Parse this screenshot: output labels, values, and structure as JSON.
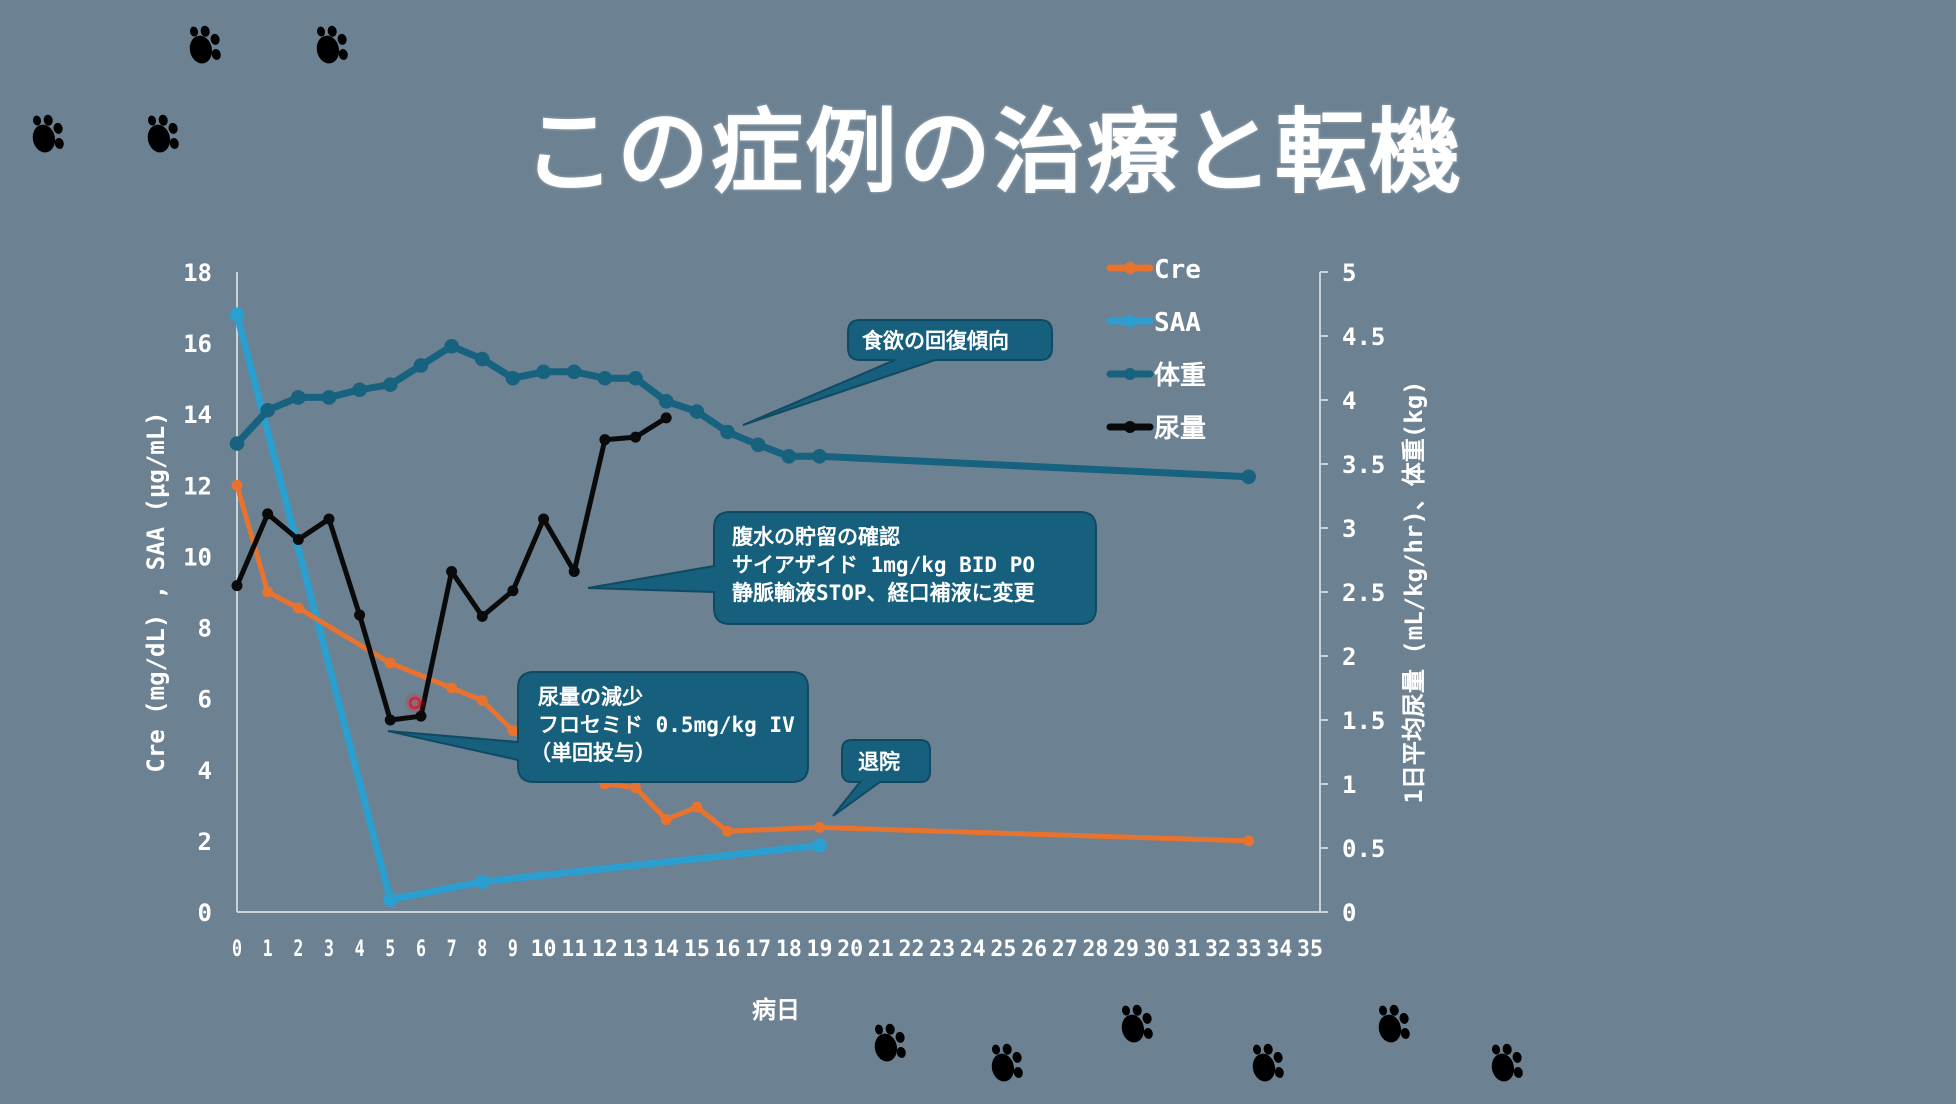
{
  "slide": {
    "title": "この症例の治療と転機",
    "background": "#6c8191"
  },
  "chart_data": {
    "type": "line",
    "title": "この症例の治療と転機",
    "xlabel": "病日",
    "ylabel_left": "Cre (mg/dL) , SAA (μg/mL)",
    "ylabel_right": "1日平均尿量 (mL/kg/hr)、体重(kg)",
    "xlim": [
      0,
      35
    ],
    "ylim_left": [
      0,
      18
    ],
    "ylim_right": [
      0,
      5
    ],
    "x_ticks": [
      "0",
      "1",
      "2",
      "3",
      "4",
      "5",
      "6",
      "7",
      "8",
      "9",
      "10",
      "11",
      "12",
      "13",
      "14",
      "15",
      "16",
      "17",
      "18",
      "19",
      "20",
      "21",
      "22",
      "23",
      "24",
      "25",
      "26",
      "27",
      "28",
      "29",
      "30",
      "31",
      "32",
      "33",
      "34",
      "35"
    ],
    "y_ticks_left": [
      "0",
      "2",
      "4",
      "6",
      "8",
      "10",
      "12",
      "14",
      "16",
      "18"
    ],
    "y_ticks_right": [
      "0",
      "0.5",
      "1",
      "1.5",
      "2",
      "2.5",
      "3",
      "3.5",
      "4",
      "4.5",
      "5"
    ],
    "grid": false,
    "legend_position": "top-right",
    "series": [
      {
        "name": "Cre",
        "axis": "left",
        "color": "#e8732e",
        "width": 5,
        "points": [
          [
            0,
            12.0
          ],
          [
            1,
            9.0
          ],
          [
            2,
            8.55
          ],
          [
            5,
            7.0
          ],
          [
            7,
            6.3
          ],
          [
            8,
            5.95
          ],
          [
            9,
            5.1
          ],
          [
            10,
            4.5
          ],
          [
            11,
            4.0
          ],
          [
            12,
            3.6
          ],
          [
            13,
            3.5
          ],
          [
            14,
            2.6
          ],
          [
            15,
            2.95
          ],
          [
            16,
            2.27
          ],
          [
            19,
            2.38
          ],
          [
            33,
            2.0
          ]
        ]
      },
      {
        "name": "SAA",
        "axis": "left",
        "color": "#2a9fd0",
        "width": 7,
        "points": [
          [
            0,
            16.8
          ],
          [
            5,
            0.35
          ],
          [
            8,
            0.85
          ],
          [
            19,
            1.87
          ]
        ]
      },
      {
        "name": "体重",
        "axis": "right",
        "color": "#17627f",
        "width": 7,
        "points": [
          [
            0,
            3.66
          ],
          [
            1,
            3.92
          ],
          [
            2,
            4.02
          ],
          [
            3,
            4.02
          ],
          [
            4,
            4.08
          ],
          [
            5,
            4.12
          ],
          [
            6,
            4.27
          ],
          [
            7,
            4.42
          ],
          [
            8,
            4.32
          ],
          [
            9,
            4.17
          ],
          [
            10,
            4.22
          ],
          [
            11,
            4.22
          ],
          [
            12,
            4.17
          ],
          [
            13,
            4.17
          ],
          [
            14,
            3.99
          ],
          [
            15,
            3.91
          ],
          [
            16,
            3.75
          ],
          [
            17,
            3.65
          ],
          [
            18,
            3.56
          ],
          [
            19,
            3.56
          ],
          [
            33,
            3.4
          ]
        ]
      },
      {
        "name": "尿量",
        "axis": "right",
        "color": "#0a0a0a",
        "width": 5,
        "points": [
          [
            0,
            2.55
          ],
          [
            1,
            3.11
          ],
          [
            2,
            2.91
          ],
          [
            3,
            3.07
          ],
          [
            4,
            2.32
          ],
          [
            5,
            1.5
          ],
          [
            6,
            1.53
          ],
          [
            7,
            2.66
          ],
          [
            8,
            2.31
          ],
          [
            9,
            2.51
          ],
          [
            10,
            3.07
          ],
          [
            11,
            2.66
          ],
          [
            12,
            3.69
          ],
          [
            13,
            3.71
          ],
          [
            14,
            3.86
          ]
        ]
      }
    ],
    "annotations": [
      {
        "text": [
          "食欲の回復傾向"
        ],
        "target_day": 16,
        "target_series": "体重"
      },
      {
        "text": [
          "腹水の貯留の確認",
          "サイアザイド 1mg/kg BID PO",
          "静脈輸液STOP、経口補液に変更"
        ],
        "target_day": 11,
        "target_series": "尿量"
      },
      {
        "text": [
          "尿量の減少",
          "フロセミド 0.5mg/kg IV",
          "（単回投与）"
        ],
        "target_day": 5,
        "target_series": "尿量"
      },
      {
        "text": [
          "退院"
        ],
        "target_day": 19,
        "target_series": "Cre"
      }
    ]
  },
  "legend": {
    "items": [
      {
        "label": "Cre",
        "color": "#e8732e"
      },
      {
        "label": "SAA",
        "color": "#2a9fd0"
      },
      {
        "label": "体重",
        "color": "#17627f"
      },
      {
        "label": "尿量",
        "color": "#0a0a0a"
      }
    ]
  },
  "callouts": {
    "appetite": {
      "lines": [
        "食欲の回復傾向"
      ]
    },
    "ascites": {
      "lines": [
        "腹水の貯留の確認",
        "サイアザイド 1mg/kg BID PO",
        "静脈輸液STOP、経口補液に変更"
      ]
    },
    "oliguria": {
      "lines": [
        "尿量の減少",
        "フロセミド 0.5mg/kg IV",
        "（単回投与）"
      ]
    },
    "discharge": {
      "lines": [
        "退院"
      ]
    }
  },
  "callout_style": {
    "fill": "#17607d",
    "stroke": "#0f4a62"
  },
  "decorations": {
    "paw_color": "#000000",
    "pointer_marker_color": "#e0202a"
  }
}
